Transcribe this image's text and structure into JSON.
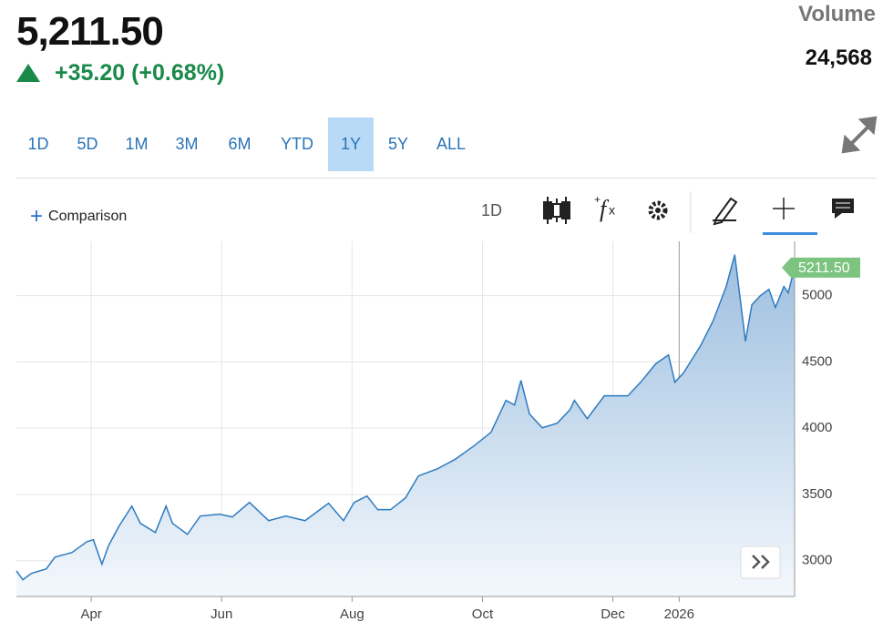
{
  "header": {
    "price": "5,211.50",
    "change": "+35.20 (+0.68%)",
    "volume_label": "Volume",
    "volume": "24,568"
  },
  "range_buttons": [
    "1D",
    "5D",
    "1M",
    "3M",
    "6M",
    "YTD",
    "1Y",
    "5Y",
    "ALL"
  ],
  "active_range": "1Y",
  "toolbar": {
    "comparison": "Comparison",
    "interval": "1D"
  },
  "chart_data": {
    "type": "area",
    "color": "#2f7bbf",
    "x": [
      55,
      58,
      62,
      69,
      73,
      81,
      88,
      91,
      95,
      98,
      103,
      109,
      113,
      120,
      125,
      128,
      135,
      141,
      150,
      156,
      164,
      173,
      181,
      190,
      201,
      208,
      213,
      219,
      224,
      230,
      237,
      243,
      252,
      260,
      269,
      277,
      284,
      288,
      291,
      295,
      301,
      308,
      314,
      316,
      322,
      330,
      341,
      347,
      354,
      360,
      363,
      367,
      375,
      381,
      387,
      391,
      396,
      399,
      403,
      407,
      410,
      414,
      416,
      419
    ],
    "values": [
      2924,
      2856,
      2904,
      2938,
      3027,
      3062,
      3144,
      3158,
      2973,
      3110,
      3261,
      3412,
      3282,
      3213,
      3412,
      3282,
      3199,
      3337,
      3351,
      3330,
      3440,
      3302,
      3337,
      3302,
      3433,
      3302,
      3440,
      3488,
      3385,
      3385,
      3474,
      3639,
      3694,
      3763,
      3866,
      3969,
      4210,
      4175,
      4361,
      4107,
      4003,
      4038,
      4141,
      4210,
      4072,
      4244,
      4244,
      4347,
      4485,
      4553,
      4347,
      4416,
      4622,
      4814,
      5069,
      5309,
      4656,
      4931,
      5000,
      5048,
      4911,
      5069,
      5021,
      5211.5
    ],
    "last_label": "5211.50",
    "xlim": [
      55,
      419
    ],
    "xticks": [
      {
        "value": 90,
        "label": "Apr"
      },
      {
        "value": 151,
        "label": "Jun"
      },
      {
        "value": 212,
        "label": "Aug"
      },
      {
        "value": 273,
        "label": "Oct"
      },
      {
        "value": 334,
        "label": "Dec"
      },
      {
        "value": 365,
        "label": "2026"
      }
    ],
    "ylim": [
      2730,
      5410
    ],
    "yticks": [
      3000,
      3500,
      4000,
      4500,
      5000
    ],
    "grid": true
  }
}
